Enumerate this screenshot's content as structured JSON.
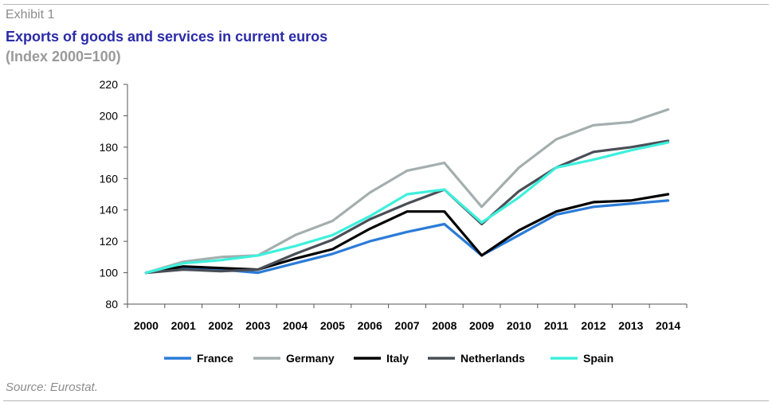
{
  "header": {
    "exhibit": "Exhibit 1",
    "title": "Exports of goods and services in current euros",
    "subtitle": "(Index 2000=100)"
  },
  "footer": {
    "source": "Source: Eurostat."
  },
  "chart_data": {
    "type": "line",
    "title": "Exports of goods and services in current euros",
    "subtitle": "(Index 2000=100)",
    "xlabel": "",
    "ylabel": "",
    "x": [
      "2000",
      "2001",
      "2002",
      "2003",
      "2004",
      "2005",
      "2006",
      "2007",
      "2008",
      "2009",
      "2010",
      "2011",
      "2012",
      "2013",
      "2014"
    ],
    "ylim": [
      80,
      220
    ],
    "yticks": [
      80,
      100,
      120,
      140,
      160,
      180,
      200,
      220
    ],
    "grid": false,
    "legend_position": "bottom",
    "series": [
      {
        "name": "France",
        "color": "#2a7bd8",
        "values": [
          100,
          103,
          102,
          100,
          106,
          112,
          120,
          126,
          131,
          111,
          124,
          137,
          142,
          144,
          146
        ]
      },
      {
        "name": "Germany",
        "color": "#a4aeae",
        "values": [
          100,
          107,
          110,
          111,
          124,
          133,
          151,
          165,
          170,
          142,
          167,
          185,
          194,
          196,
          204
        ]
      },
      {
        "name": "Italy",
        "color": "#000000",
        "values": [
          100,
          104,
          103,
          102,
          109,
          115,
          128,
          139,
          139,
          111,
          127,
          139,
          145,
          146,
          150
        ]
      },
      {
        "name": "Netherlands",
        "color": "#4a4e57",
        "values": [
          100,
          102,
          101,
          102,
          112,
          121,
          134,
          144,
          153,
          131,
          152,
          167,
          177,
          180,
          184
        ]
      },
      {
        "name": "Spain",
        "color": "#3ef0dc",
        "values": [
          100,
          106,
          108,
          111,
          117,
          124,
          136,
          150,
          153,
          132,
          148,
          167,
          172,
          178,
          183
        ]
      }
    ]
  }
}
